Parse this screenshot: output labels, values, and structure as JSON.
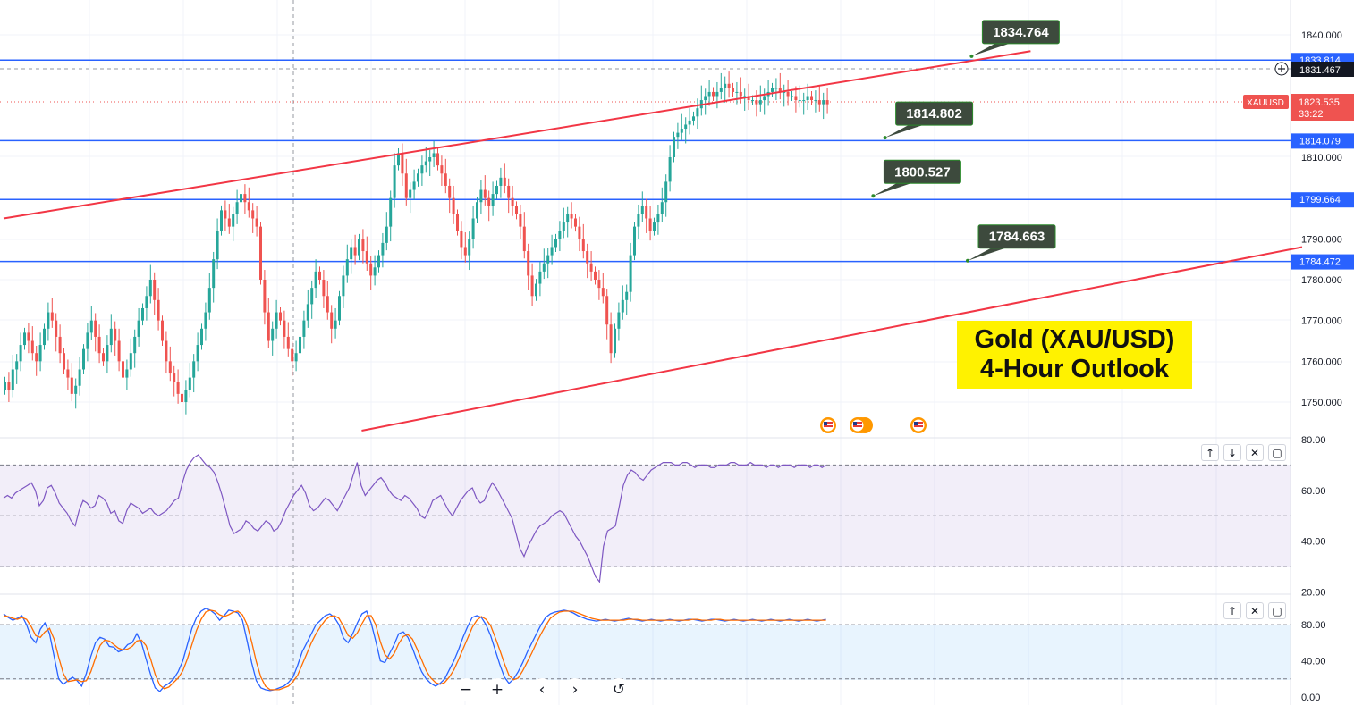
{
  "title": {
    "line1": "Gold (XAU/USD)",
    "line2": "4-Hour Outlook"
  },
  "symbol": {
    "name": "XAUUSD",
    "last_price": "1823.535",
    "countdown": "33:22",
    "crosshair_price": "1831.467"
  },
  "colors": {
    "up": "#26a69a",
    "down": "#ef5350",
    "level_line": "#2962ff",
    "channel": "#f23645",
    "rsi": "#7e57c2",
    "stoch_k": "#2962ff",
    "stoch_d": "#ff6d00",
    "callout": "#3d4a3d",
    "title_bg": "#fff200"
  },
  "chart_data": [
    {
      "type": "candlestick",
      "pane": "price",
      "y_ticks": [
        "1840.000",
        "1810.000",
        "1790.000",
        "1780.000",
        "1770.000",
        "1760.000",
        "1750.000"
      ],
      "ylim": [
        1743,
        1845
      ],
      "horizontal_levels": [
        {
          "label": "1833.814",
          "value": 1833.814
        },
        {
          "label": "1814.079",
          "value": 1814.079
        },
        {
          "label": "1799.664",
          "value": 1799.664
        },
        {
          "label": "1784.472",
          "value": 1784.472
        }
      ],
      "callouts": [
        {
          "label": "1834.764",
          "value": 1834.764,
          "bar": 246
        },
        {
          "label": "1814.802",
          "value": 1814.802,
          "bar": 224
        },
        {
          "label": "1800.527",
          "value": 1800.527,
          "bar": 221
        },
        {
          "label": "1784.663",
          "value": 1784.663,
          "bar": 245
        }
      ],
      "channel_lines": [
        {
          "name": "upper",
          "from": {
            "bar": 0,
            "value": 1795.0
          },
          "to": {
            "bar": 261,
            "value": 1836.0
          }
        },
        {
          "name": "lower",
          "from": {
            "bar": 91,
            "value": 1743.0
          },
          "to": {
            "bar": 330,
            "value": 1788.0
          }
        }
      ],
      "candles": {
        "count": 208,
        "closes": [
          1755,
          1753,
          1758,
          1760,
          1764,
          1767,
          1765,
          1762,
          1760,
          1764,
          1768,
          1772,
          1770,
          1766,
          1762,
          1758,
          1756,
          1752,
          1754,
          1758,
          1763,
          1767,
          1770,
          1766,
          1762,
          1760,
          1764,
          1768,
          1765,
          1760,
          1756,
          1758,
          1762,
          1766,
          1770,
          1773,
          1776,
          1780,
          1775,
          1770,
          1765,
          1760,
          1757,
          1755,
          1752,
          1750,
          1753,
          1756,
          1760,
          1764,
          1768,
          1772,
          1778,
          1785,
          1792,
          1797,
          1795,
          1793,
          1796,
          1799,
          1801,
          1799,
          1797,
          1795,
          1793,
          1780,
          1772,
          1765,
          1768,
          1772,
          1770,
          1766,
          1763,
          1760,
          1762,
          1766,
          1770,
          1774,
          1778,
          1782,
          1780,
          1776,
          1772,
          1768,
          1770,
          1776,
          1781,
          1785,
          1788,
          1786,
          1790,
          1787,
          1784,
          1781,
          1783,
          1786,
          1789,
          1793,
          1800,
          1808,
          1811,
          1806,
          1800,
          1802,
          1804,
          1806,
          1808,
          1809,
          1810,
          1811,
          1808,
          1806,
          1803,
          1800,
          1796,
          1792,
          1788,
          1786,
          1790,
          1795,
          1799,
          1802,
          1800,
          1798,
          1801,
          1803,
          1805,
          1803,
          1800,
          1798,
          1796,
          1793,
          1787,
          1781,
          1776,
          1779,
          1782,
          1784,
          1786,
          1788,
          1790,
          1792,
          1794,
          1796,
          1795,
          1793,
          1790,
          1787,
          1784,
          1782,
          1780,
          1778,
          1776,
          1769,
          1762,
          1768,
          1772,
          1775,
          1777,
          1786,
          1793,
          1796,
          1798,
          1795,
          1792,
          1794,
          1796,
          1799,
          1804,
          1810,
          1815,
          1816,
          1817,
          1818,
          1819,
          1820,
          1822,
          1824,
          1825,
          1826,
          1825,
          1826,
          1827,
          1828,
          1827,
          1826,
          1826,
          1825,
          1825,
          1824,
          1824,
          1823,
          1824,
          1825,
          1826,
          1827,
          1827,
          1826,
          1826,
          1825,
          1825,
          1824,
          1824,
          1824,
          1825,
          1824,
          1824,
          1823,
          1824,
          1823
        ]
      }
    },
    {
      "type": "line",
      "pane": "rsi",
      "y_ticks": [
        "80.00",
        "60.00",
        "40.00",
        "20.00"
      ],
      "ylim": [
        20,
        80
      ],
      "bands": [
        70,
        50,
        30
      ],
      "series": [
        {
          "name": "",
          "values": [
            57,
            58,
            57,
            59,
            60,
            61,
            62,
            63,
            60,
            54,
            56,
            61,
            62,
            59,
            55,
            53,
            51,
            48,
            46,
            52,
            56,
            55,
            53,
            54,
            58,
            57,
            55,
            51,
            52,
            48,
            47,
            52,
            55,
            54,
            53,
            51,
            52,
            53,
            51,
            50,
            51,
            52,
            54,
            56,
            57,
            63,
            68,
            71,
            73,
            74,
            72,
            70,
            69,
            67,
            63,
            58,
            52,
            46,
            43,
            44,
            45,
            48,
            47,
            45,
            44,
            46,
            48,
            47,
            44,
            45,
            48,
            52,
            55,
            58,
            60,
            62,
            59,
            54,
            52,
            53,
            55,
            57,
            56,
            54,
            52,
            55,
            58,
            61,
            66,
            71,
            62,
            58,
            60,
            62,
            64,
            65,
            63,
            60,
            58,
            57,
            56,
            58,
            57,
            55,
            53,
            50,
            49,
            52,
            56,
            57,
            58,
            55,
            52,
            50,
            53,
            56,
            58,
            60,
            61,
            57,
            55,
            56,
            60,
            63,
            61,
            58,
            55,
            52,
            49,
            43,
            37,
            34,
            38,
            41,
            44,
            46,
            47,
            48,
            50,
            51,
            52,
            51,
            48,
            45,
            42,
            40,
            37,
            34,
            30,
            26,
            24,
            38,
            44,
            45,
            46,
            54,
            62,
            66,
            68,
            67,
            65,
            64,
            66,
            68,
            69,
            70,
            71,
            71,
            71,
            70,
            70,
            71,
            71,
            70,
            69,
            70,
            70,
            70,
            69,
            69,
            70,
            70,
            70,
            71,
            71,
            70,
            70,
            70,
            71,
            70,
            70,
            70,
            69,
            70,
            70,
            69,
            70,
            70,
            70,
            69,
            70,
            70,
            70,
            69,
            70,
            70,
            69,
            70
          ]
        }
      ]
    },
    {
      "type": "line",
      "pane": "stochastic",
      "y_ticks": [
        "80.00",
        "40.00",
        "0.00"
      ],
      "ylim": [
        -5,
        105
      ],
      "bands": [
        80,
        20
      ],
      "series": [
        {
          "name": "",
          "values": [
            92,
            88,
            85,
            87,
            90,
            80,
            66,
            60,
            75,
            82,
            70,
            45,
            20,
            14,
            18,
            22,
            18,
            12,
            26,
            45,
            60,
            66,
            64,
            56,
            55,
            50,
            52,
            58,
            60,
            70,
            60,
            42,
            25,
            10,
            6,
            12,
            15,
            20,
            28,
            40,
            58,
            76,
            88,
            95,
            98,
            96,
            92,
            85,
            90,
            96,
            95,
            93,
            85,
            62,
            38,
            18,
            10,
            8,
            7,
            8,
            10,
            12,
            16,
            22,
            35,
            50,
            60,
            70,
            80,
            85,
            90,
            92,
            88,
            80,
            65,
            60,
            70,
            82,
            92,
            95,
            82,
            62,
            40,
            38,
            48,
            58,
            70,
            72,
            66,
            54,
            40,
            28,
            20,
            15,
            12,
            15,
            20,
            30,
            40,
            52,
            66,
            78,
            88,
            90,
            88,
            80,
            68,
            52,
            36,
            22,
            15,
            20,
            28,
            38,
            50,
            60,
            70,
            80,
            88,
            92,
            94,
            95,
            96,
            95,
            93,
            90,
            88,
            86,
            85,
            84,
            85,
            86,
            85,
            84,
            85,
            86,
            87,
            86,
            85,
            84,
            85,
            86,
            85,
            84,
            85,
            86,
            85,
            84,
            85,
            86,
            86,
            85,
            84,
            85,
            86,
            86,
            85,
            84,
            85,
            86,
            85,
            84,
            85,
            86,
            85,
            84,
            85,
            86,
            85,
            84,
            85,
            86,
            85,
            84,
            85,
            86,
            85,
            84,
            85,
            86
          ]
        },
        {
          "name": "",
          "values": [
            90,
            89,
            87,
            86,
            88,
            86,
            78,
            68,
            66,
            72,
            76,
            64,
            44,
            26,
            17,
            18,
            19,
            17,
            18,
            28,
            43,
            57,
            63,
            62,
            58,
            54,
            52,
            53,
            56,
            62,
            63,
            57,
            42,
            25,
            13,
            9,
            11,
            16,
            21,
            29,
            42,
            58,
            74,
            86,
            94,
            96,
            95,
            91,
            89,
            91,
            94,
            95,
            91,
            80,
            61,
            39,
            22,
            12,
            8,
            8,
            8,
            10,
            12,
            17,
            24,
            36,
            48,
            60,
            70,
            78,
            85,
            89,
            90,
            87,
            78,
            68,
            65,
            71,
            81,
            90,
            90,
            80,
            61,
            47,
            42,
            48,
            59,
            67,
            69,
            64,
            53,
            41,
            29,
            21,
            16,
            14,
            16,
            22,
            30,
            41,
            53,
            65,
            77,
            85,
            89,
            86,
            79,
            66,
            52,
            37,
            24,
            19,
            21,
            29,
            39,
            49,
            60,
            70,
            79,
            87,
            91,
            94,
            95,
            95,
            95,
            93,
            91,
            89,
            87,
            86,
            85,
            85,
            85,
            85,
            85,
            85,
            86,
            86,
            86,
            85,
            85,
            85,
            85,
            85,
            85,
            85,
            85,
            85,
            85,
            85,
            86,
            86,
            85,
            85,
            85,
            86,
            86,
            85,
            85,
            85,
            85,
            85,
            85,
            85,
            85,
            85,
            85,
            85,
            85,
            85,
            85,
            85,
            85,
            85,
            85,
            85,
            85,
            85,
            85,
            85
          ]
        }
      ]
    }
  ]
}
